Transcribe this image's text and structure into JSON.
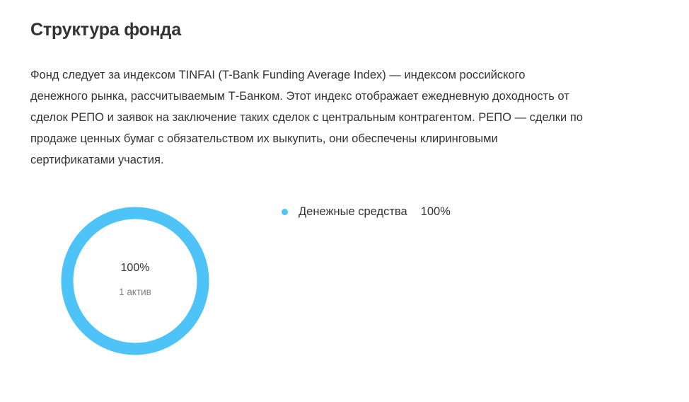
{
  "section": {
    "title": "Структура фонда",
    "description_lines": [
      "Фонд следует за индексом TINFAI (T-Bank Funding Average Index) — индексом российского",
      "денежного рынка, рассчитываемым Т-Банком. Этот индекс отображает ежедневную доходность от",
      "сделок РЕПО и заявок на заключение таких сделок с центральным контрагентом. РЕПО — сделки по",
      "продаже ценных бумаг с обязательством их выкупить, они обеспечены клиринговыми",
      "сертификатами участия."
    ]
  },
  "chart_data": {
    "type": "pie",
    "variant": "donut",
    "center_value": "100%",
    "center_caption": "1 актив",
    "legend_position": "right",
    "slices": [
      {
        "name": "Денежные средства",
        "value": 100,
        "label": "100%",
        "color": "#4ec3f7"
      }
    ]
  }
}
